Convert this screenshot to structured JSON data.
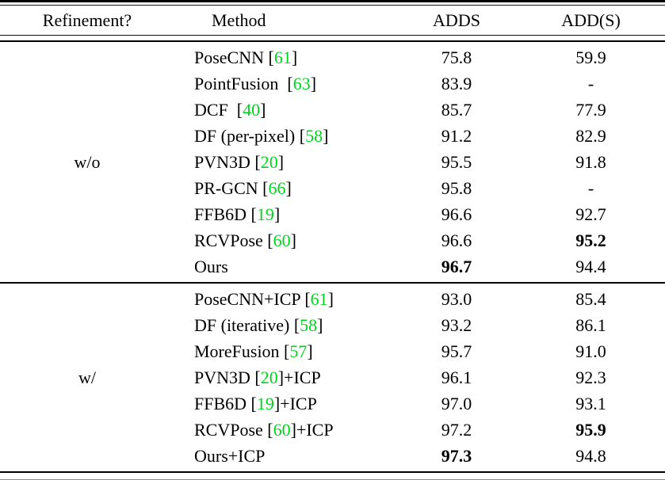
{
  "colors": {
    "citation_green": "#00d41e",
    "text": "#000000",
    "rule": "#000000"
  },
  "table": {
    "headers": {
      "refinement": "Refinement?",
      "method": "Method",
      "adds": "ADDS",
      "add_s": "ADD(S)"
    },
    "sections": [
      {
        "refinement_label": "w/o",
        "rows": [
          {
            "method_prefix": "PoseCNN [",
            "cite": "61",
            "method_suffix": "]",
            "adds": "75.8",
            "adds_bold": false,
            "add_s": "59.9",
            "add_s_bold": false
          },
          {
            "method_prefix": "PointFusion  [",
            "cite": "63",
            "method_suffix": "]",
            "adds": "83.9",
            "adds_bold": false,
            "add_s": "-",
            "add_s_bold": false
          },
          {
            "method_prefix": "DCF  [",
            "cite": "40",
            "method_suffix": "]",
            "adds": "85.7",
            "adds_bold": false,
            "add_s": "77.9",
            "add_s_bold": false
          },
          {
            "method_prefix": "DF (per-pixel) [",
            "cite": "58",
            "method_suffix": "]",
            "adds": "91.2",
            "adds_bold": false,
            "add_s": "82.9",
            "add_s_bold": false
          },
          {
            "method_prefix": "PVN3D [",
            "cite": "20",
            "method_suffix": "]",
            "adds": "95.5",
            "adds_bold": false,
            "add_s": "91.8",
            "add_s_bold": false
          },
          {
            "method_prefix": "PR-GCN [",
            "cite": "66",
            "method_suffix": "]",
            "adds": "95.8",
            "adds_bold": false,
            "add_s": "-",
            "add_s_bold": false
          },
          {
            "method_prefix": "FFB6D [",
            "cite": "19",
            "method_suffix": "]",
            "adds": "96.6",
            "adds_bold": false,
            "add_s": "92.7",
            "add_s_bold": false
          },
          {
            "method_prefix": "RCVPose [",
            "cite": "60",
            "method_suffix": "]",
            "adds": "96.6",
            "adds_bold": false,
            "add_s": "95.2",
            "add_s_bold": true
          },
          {
            "method_prefix": "Ours",
            "cite": "",
            "method_suffix": "",
            "adds": "96.7",
            "adds_bold": true,
            "add_s": "94.4",
            "add_s_bold": false
          }
        ]
      },
      {
        "refinement_label": "w/",
        "rows": [
          {
            "method_prefix": "PoseCNN+ICP [",
            "cite": "61",
            "method_suffix": "]",
            "adds": "93.0",
            "adds_bold": false,
            "add_s": "85.4",
            "add_s_bold": false
          },
          {
            "method_prefix": "DF (iterative) [",
            "cite": "58",
            "method_suffix": "]",
            "adds": "93.2",
            "adds_bold": false,
            "add_s": "86.1",
            "add_s_bold": false
          },
          {
            "method_prefix": "MoreFusion [",
            "cite": "57",
            "method_suffix": "]",
            "adds": "95.7",
            "adds_bold": false,
            "add_s": "91.0",
            "add_s_bold": false
          },
          {
            "method_prefix": "PVN3D [",
            "cite": "20",
            "method_suffix": "]+ICP",
            "adds": "96.1",
            "adds_bold": false,
            "add_s": "92.3",
            "add_s_bold": false
          },
          {
            "method_prefix": "FFB6D [",
            "cite": "19",
            "method_suffix": "]+ICP",
            "adds": "97.0",
            "adds_bold": false,
            "add_s": "93.1",
            "add_s_bold": false
          },
          {
            "method_prefix": "RCVPose [",
            "cite": "60",
            "method_suffix": "]+ICP",
            "adds": "97.2",
            "adds_bold": false,
            "add_s": "95.9",
            "add_s_bold": true
          },
          {
            "method_prefix": "Ours+ICP",
            "cite": "",
            "method_suffix": "",
            "adds": "97.3",
            "adds_bold": true,
            "add_s": "94.8",
            "add_s_bold": false
          }
        ]
      }
    ]
  }
}
